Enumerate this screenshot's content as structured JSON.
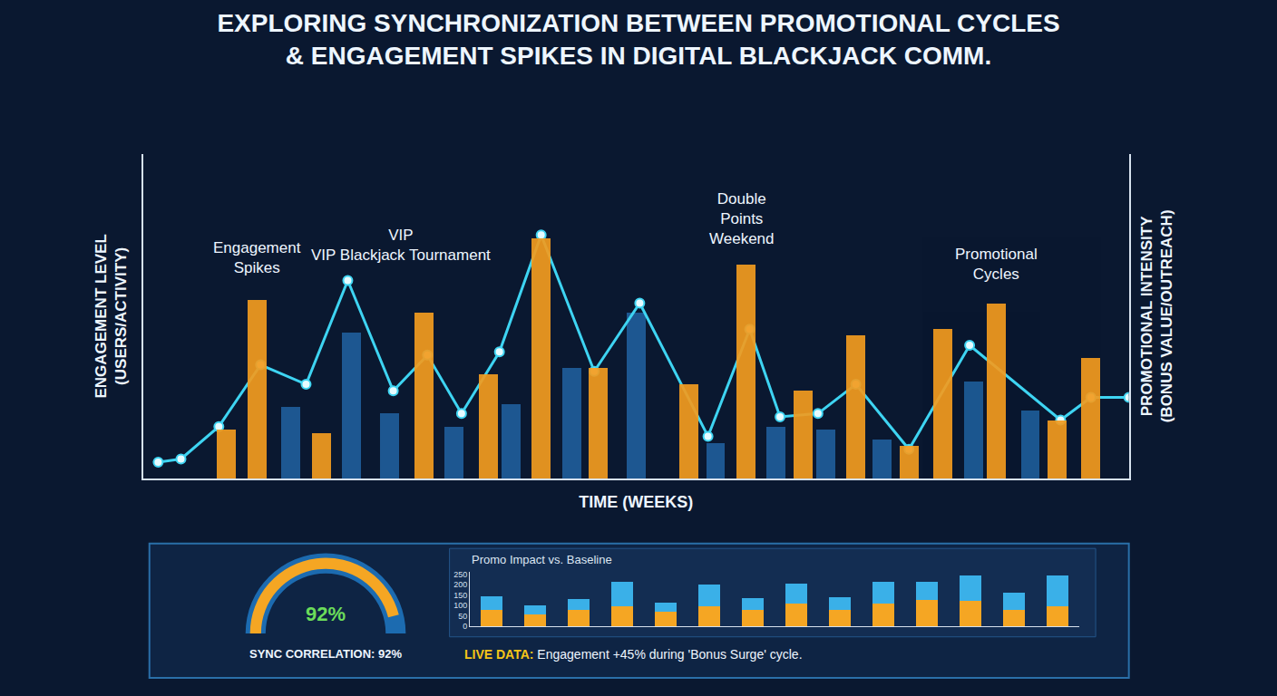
{
  "caption": {
    "label": "LIVE DATA:",
    "text": "Engagement +45% during 'Bonus Surge' cycle."
  },
  "chart_data": [
    {
      "type": "combo",
      "title": "EXPLORING SYNCHRONIZATION BETWEEN PROMOTIONAL CYCLES & ENGAGEMENT SPIKES IN DIGITAL BLACKJACK COMM.",
      "x_label": "TIME (WEEKS)",
      "y_label": "ENGAGEMENT LEVEL (USERS/ACTIVITY)",
      "y2_label": "PROMOTIONAL INTENSITY (BONUS VALUE/OUTREACH)",
      "xlim": [
        0,
        26
      ],
      "ylim": [
        0,
        100
      ],
      "y2lim": [
        0,
        100
      ],
      "tick_labels": false,
      "grid": false,
      "series": [
        {
          "type": "bar",
          "color": "#1f5d9a",
          "x": [
            3.9,
            5.5,
            6.5,
            8.2,
            9.7,
            11.3,
            13.0,
            15.1,
            16.7,
            18.0,
            19.5,
            21.9,
            23.4
          ],
          "values": [
            22,
            45,
            20,
            16,
            23,
            34,
            51,
            11,
            16,
            15,
            12,
            30,
            21
          ]
        },
        {
          "type": "bar",
          "axis": "y2",
          "color": "#f39c1f",
          "x": [
            2.2,
            3.0,
            4.7,
            7.4,
            9.1,
            10.5,
            12.0,
            14.4,
            15.9,
            17.4,
            18.8,
            20.2,
            21.1,
            22.5,
            24.1,
            25.0
          ],
          "values": [
            15,
            55,
            14,
            51,
            32,
            74,
            34,
            29,
            66,
            27,
            44,
            10,
            46,
            54,
            18,
            37
          ]
        },
        {
          "type": "line",
          "color": "#3ed4f2",
          "marker": "circle",
          "x": [
            0.4,
            1.0,
            2.0,
            3.1,
            4.3,
            5.4,
            6.6,
            7.5,
            8.4,
            9.4,
            10.5,
            11.9,
            13.1,
            14.9,
            16.0,
            16.8,
            17.8,
            18.8,
            20.2,
            21.8,
            24.2,
            25.0,
            26.0
          ],
          "values": [
            5,
            6,
            16,
            35,
            29,
            61,
            27,
            38,
            20,
            39,
            75,
            33,
            54,
            13,
            46,
            19,
            20,
            29,
            9,
            41,
            18,
            25,
            25
          ]
        }
      ],
      "annotations": [
        {
          "text_lines": [
            "Engagement",
            "Spikes"
          ],
          "x": 3.0,
          "y": 68
        },
        {
          "text_lines": [
            "VIP",
            "VIP Blackjack Tournament"
          ],
          "x": 6.8,
          "y": 72
        },
        {
          "text_lines": [
            "Double",
            "Points",
            "Weekend"
          ],
          "x": 15.8,
          "y": 80
        },
        {
          "text_lines": [
            "Promotional",
            "Cycles"
          ],
          "x": 22.5,
          "y": 66
        }
      ]
    },
    {
      "type": "bar",
      "title": "Promo Impact vs. Baseline",
      "stacked": true,
      "grid": false,
      "categories": [
        null,
        null,
        null,
        null,
        null,
        null,
        null,
        null,
        null,
        null,
        null,
        null,
        null,
        null
      ],
      "ylim": [
        0,
        260
      ],
      "yticks": [
        0,
        50,
        100,
        150,
        200,
        250
      ],
      "series": [
        {
          "color": "#f5a623",
          "values": [
            81,
            58,
            77,
            96,
            69,
            96,
            77,
            108,
            77,
            108,
            127,
            123,
            77,
            96
          ]
        },
        {
          "color": "#3ab0e8",
          "values": [
            65,
            42,
            54,
            116,
            46,
            104,
            58,
            96,
            61,
            107,
            88,
            123,
            85,
            146
          ]
        }
      ]
    },
    {
      "type": "gauge",
      "value": 92,
      "value_label": "92%",
      "label": "SYNC CORRELATION: 92%",
      "range": [
        0,
        100
      ]
    }
  ]
}
